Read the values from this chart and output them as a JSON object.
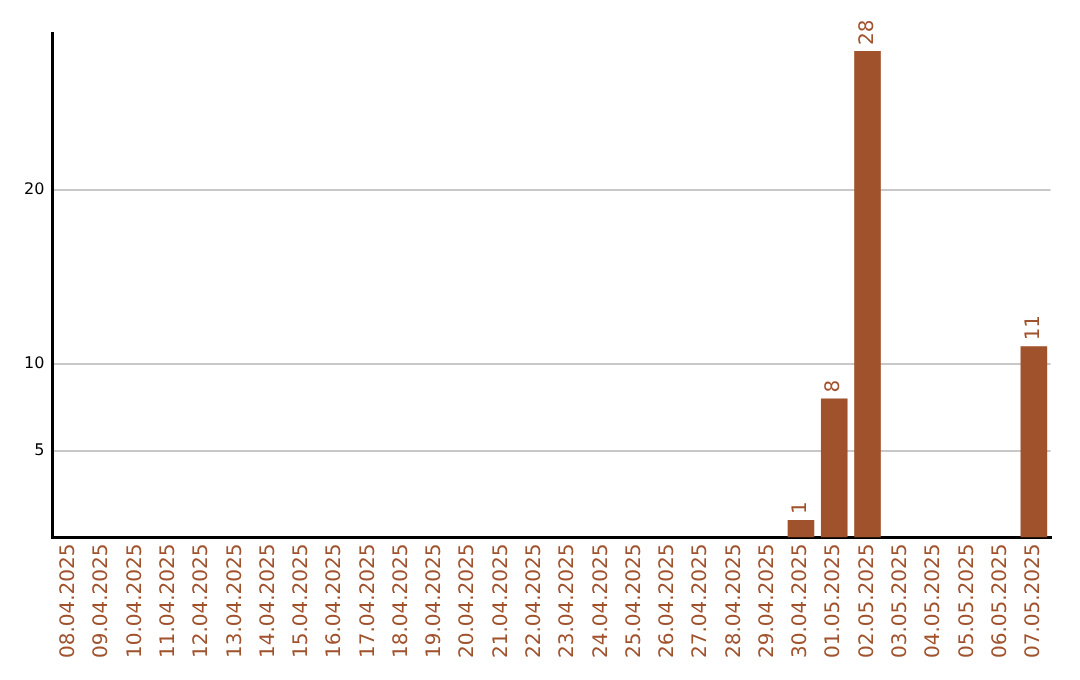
{
  "chart_data": {
    "type": "bar",
    "categories": [
      "08.04.2025",
      "09.04.2025",
      "10.04.2025",
      "11.04.2025",
      "12.04.2025",
      "13.04.2025",
      "14.04.2025",
      "15.04.2025",
      "16.04.2025",
      "17.04.2025",
      "18.04.2025",
      "19.04.2025",
      "20.04.2025",
      "21.04.2025",
      "22.04.2025",
      "23.04.2025",
      "24.04.2025",
      "25.04.2025",
      "26.04.2025",
      "27.04.2025",
      "28.04.2025",
      "29.04.2025",
      "30.04.2025",
      "01.05.2025",
      "02.05.2025",
      "03.05.2025",
      "04.05.2025",
      "05.05.2025",
      "06.05.2025",
      "07.05.2025"
    ],
    "values": [
      0,
      0,
      0,
      0,
      0,
      0,
      0,
      0,
      0,
      0,
      0,
      0,
      0,
      0,
      0,
      0,
      0,
      0,
      0,
      0,
      0,
      0,
      1,
      8,
      28,
      0,
      0,
      0,
      0,
      11
    ],
    "value_labels": [
      null,
      null,
      null,
      null,
      null,
      null,
      null,
      null,
      null,
      null,
      null,
      null,
      null,
      null,
      null,
      null,
      null,
      null,
      null,
      null,
      null,
      null,
      "1",
      "8",
      "28",
      null,
      null,
      null,
      null,
      "11"
    ],
    "color": "#a0522d",
    "ylim": [
      0,
      29
    ],
    "yticks": [
      5,
      10,
      20
    ],
    "grid": "y",
    "legend": false
  }
}
